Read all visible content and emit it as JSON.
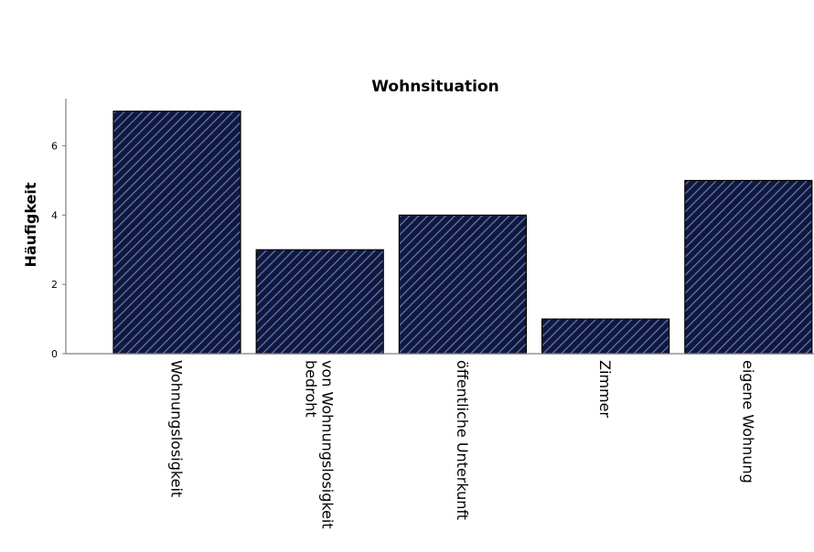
{
  "chart_data": {
    "type": "bar",
    "title": "Wohnsituation",
    "ylabel": "Häufigkeit",
    "xlabel": "",
    "categories": [
      [
        "Wohnungslosigkeit"
      ],
      [
        "von Wohnungslosigkeit",
        "bedroht"
      ],
      [
        "öffentliche Unterkunft"
      ],
      [
        "Zimmer"
      ],
      [
        "eigene Wohnung"
      ]
    ],
    "values": [
      7,
      3,
      4,
      1,
      5
    ],
    "ylim": [
      0,
      7.3
    ],
    "yticks": [
      "0",
      "2",
      "4",
      "6"
    ],
    "grid": false,
    "legend": "none",
    "colors": {
      "bar_fill": "#13183a",
      "hatch": "#5a7fc8",
      "outline": "#000000",
      "axis": "#7f7f7f"
    }
  }
}
